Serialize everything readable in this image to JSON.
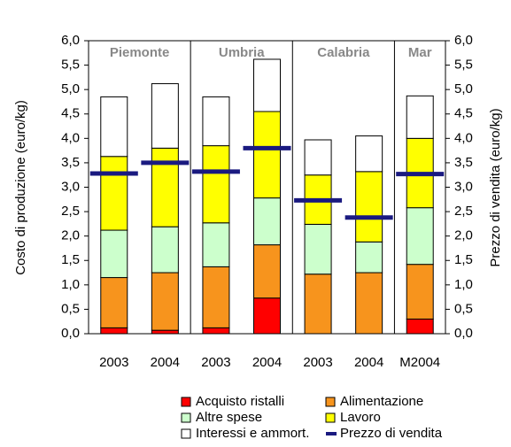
{
  "chart_data": {
    "type": "bar",
    "stacked": true,
    "y_label": "Costo di produzione (euro/kg)",
    "y2_label": "Prezzo di vendita (euro/kg)",
    "groups": [
      {
        "name": "Piemonte",
        "categories": [
          "2003",
          "2004"
        ]
      },
      {
        "name": "Umbria",
        "categories": [
          "2003",
          "2004"
        ]
      },
      {
        "name": "Calabria",
        "categories": [
          "2003",
          "2004"
        ]
      },
      {
        "name": "Mar",
        "categories": [
          "M2004"
        ]
      }
    ],
    "series": [
      {
        "name": "Acquisto ristalli",
        "color": "#ff0000",
        "values": [
          0.12,
          0.07,
          0.12,
          0.73,
          0,
          0,
          0.3
        ]
      },
      {
        "name": "Alimentazione",
        "color": "#f7941d",
        "values": [
          1.03,
          1.18,
          1.25,
          1.09,
          1.22,
          1.25,
          1.12
        ]
      },
      {
        "name": "Altre spese",
        "color": "#ccffcc",
        "values": [
          0.97,
          0.94,
          0.9,
          0.96,
          1.02,
          0.63,
          1.16
        ]
      },
      {
        "name": "Lavoro",
        "color": "#ffff00",
        "values": [
          1.51,
          1.61,
          1.58,
          1.77,
          1.01,
          1.44,
          1.42
        ]
      },
      {
        "name": "Interessi e ammort.",
        "color": "#ffffff",
        "values": [
          1.22,
          1.32,
          1.0,
          1.07,
          0.72,
          0.73,
          0.87
        ]
      },
      {
        "name": "Prezzo di vendita",
        "color": "#1a1a80",
        "type": "marker",
        "axis": "y2",
        "values": [
          3.28,
          3.5,
          3.32,
          3.8,
          2.73,
          2.38,
          3.27
        ]
      }
    ],
    "ylim": [
      0,
      6
    ],
    "yticks": [
      {
        "value": 0,
        "label": "0,0"
      },
      {
        "value": 0.5,
        "label": "0,5"
      },
      {
        "value": 1,
        "label": "1,0"
      },
      {
        "value": 1.5,
        "label": "1,5"
      },
      {
        "value": 2,
        "label": "2,0"
      },
      {
        "value": 2.5,
        "label": "2,5"
      },
      {
        "value": 3,
        "label": "3,0"
      },
      {
        "value": 3.5,
        "label": "3,5"
      },
      {
        "value": 4,
        "label": "4,0"
      },
      {
        "value": 4.5,
        "label": "4,5"
      },
      {
        "value": 5,
        "label": "5,0"
      },
      {
        "value": 5.5,
        "label": "5,5"
      },
      {
        "value": 6,
        "label": "6,0"
      }
    ],
    "y2lim": [
      0,
      6
    ],
    "y2ticks": [
      {
        "value": 0,
        "label": "0,0"
      },
      {
        "value": 0.5,
        "label": "0,5"
      },
      {
        "value": 1,
        "label": "1,0"
      },
      {
        "value": 1.5,
        "label": "1,5"
      },
      {
        "value": 2,
        "label": "2,0"
      },
      {
        "value": 2.5,
        "label": "2,5"
      },
      {
        "value": 3,
        "label": "3,0"
      },
      {
        "value": 3.5,
        "label": "3,5"
      },
      {
        "value": 4,
        "label": "4,0"
      },
      {
        "value": 4.5,
        "label": "4,5"
      },
      {
        "value": 5,
        "label": "5,0"
      },
      {
        "value": 5.5,
        "label": "5,5"
      },
      {
        "value": 6,
        "label": "6,0"
      }
    ],
    "grid": false
  }
}
